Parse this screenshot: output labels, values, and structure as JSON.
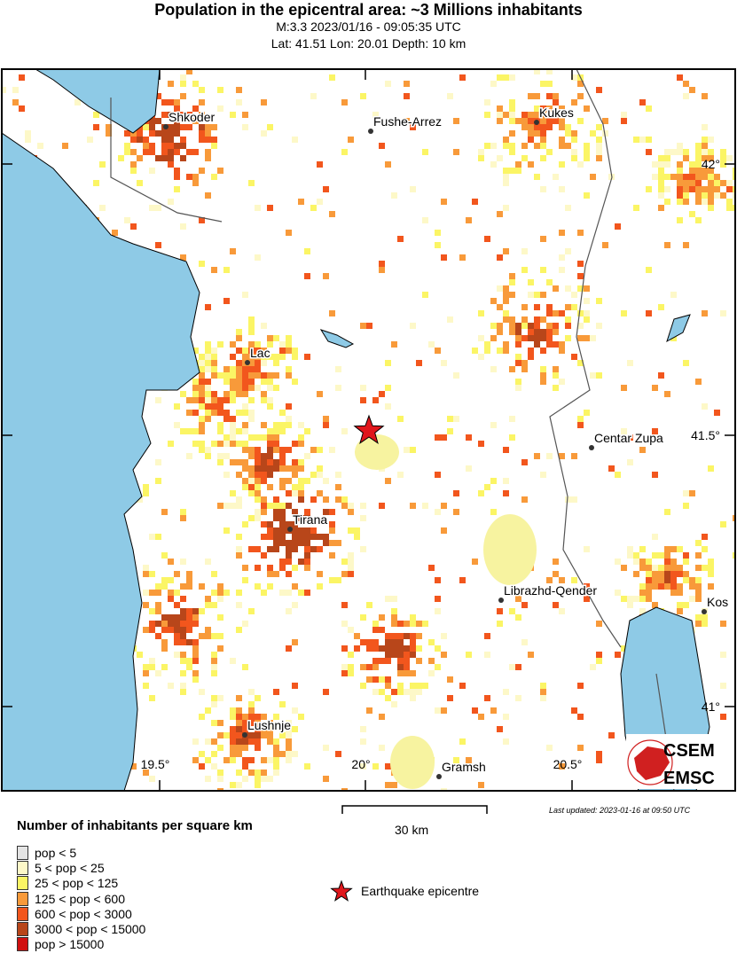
{
  "header": {
    "title": "Population in the epicentral area: ~3 Millions inhabitants",
    "subtitle1": "M:3.3 2023/01/16 - 09:05:35 UTC",
    "subtitle2": "Lat: 41.51 Lon: 20.01 Depth: 10 km"
  },
  "map": {
    "epicentre": {
      "lat": 41.51,
      "lon": 20.01
    },
    "cities": [
      {
        "name": "Shkoder"
      },
      {
        "name": "Fushe-Arrez"
      },
      {
        "name": "Kukes"
      },
      {
        "name": "Lac"
      },
      {
        "name": "Centar Zupa"
      },
      {
        "name": "Tirana"
      },
      {
        "name": "Librazhd-Qender"
      },
      {
        "name": "Kos"
      },
      {
        "name": "Lushnje"
      },
      {
        "name": "Gramsh"
      }
    ],
    "lat_ticks": [
      "42°",
      "41.5°",
      "41°"
    ],
    "lon_ticks": [
      "19.5°",
      "20°",
      "20.5°"
    ],
    "colors": {
      "sea": "#8ecae6",
      "land": "#ffffff",
      "epicentre": "#e0161b"
    }
  },
  "logo": {
    "text1": "CSEM",
    "text2": "EMSC"
  },
  "scale": {
    "label": "30 km"
  },
  "updated": "Last updated: 2023-01-16 at 09:50 UTC",
  "legend": {
    "title": "Number of inhabitants per square km",
    "items": [
      {
        "label": "pop < 5",
        "color": "#e4e4e4"
      },
      {
        "label": "5 < pop < 25",
        "color": "#fdf8c8"
      },
      {
        "label": "25 < pop < 125",
        "color": "#fbf565"
      },
      {
        "label": "125 < pop < 600",
        "color": "#f89a3a"
      },
      {
        "label": "600 < pop < 3000",
        "color": "#f2561d"
      },
      {
        "label": "3000 < pop < 15000",
        "color": "#b8461a"
      },
      {
        "label": "pop > 15000",
        "color": "#d01010"
      }
    ],
    "epicentre_label": "Earthquake epicentre"
  }
}
